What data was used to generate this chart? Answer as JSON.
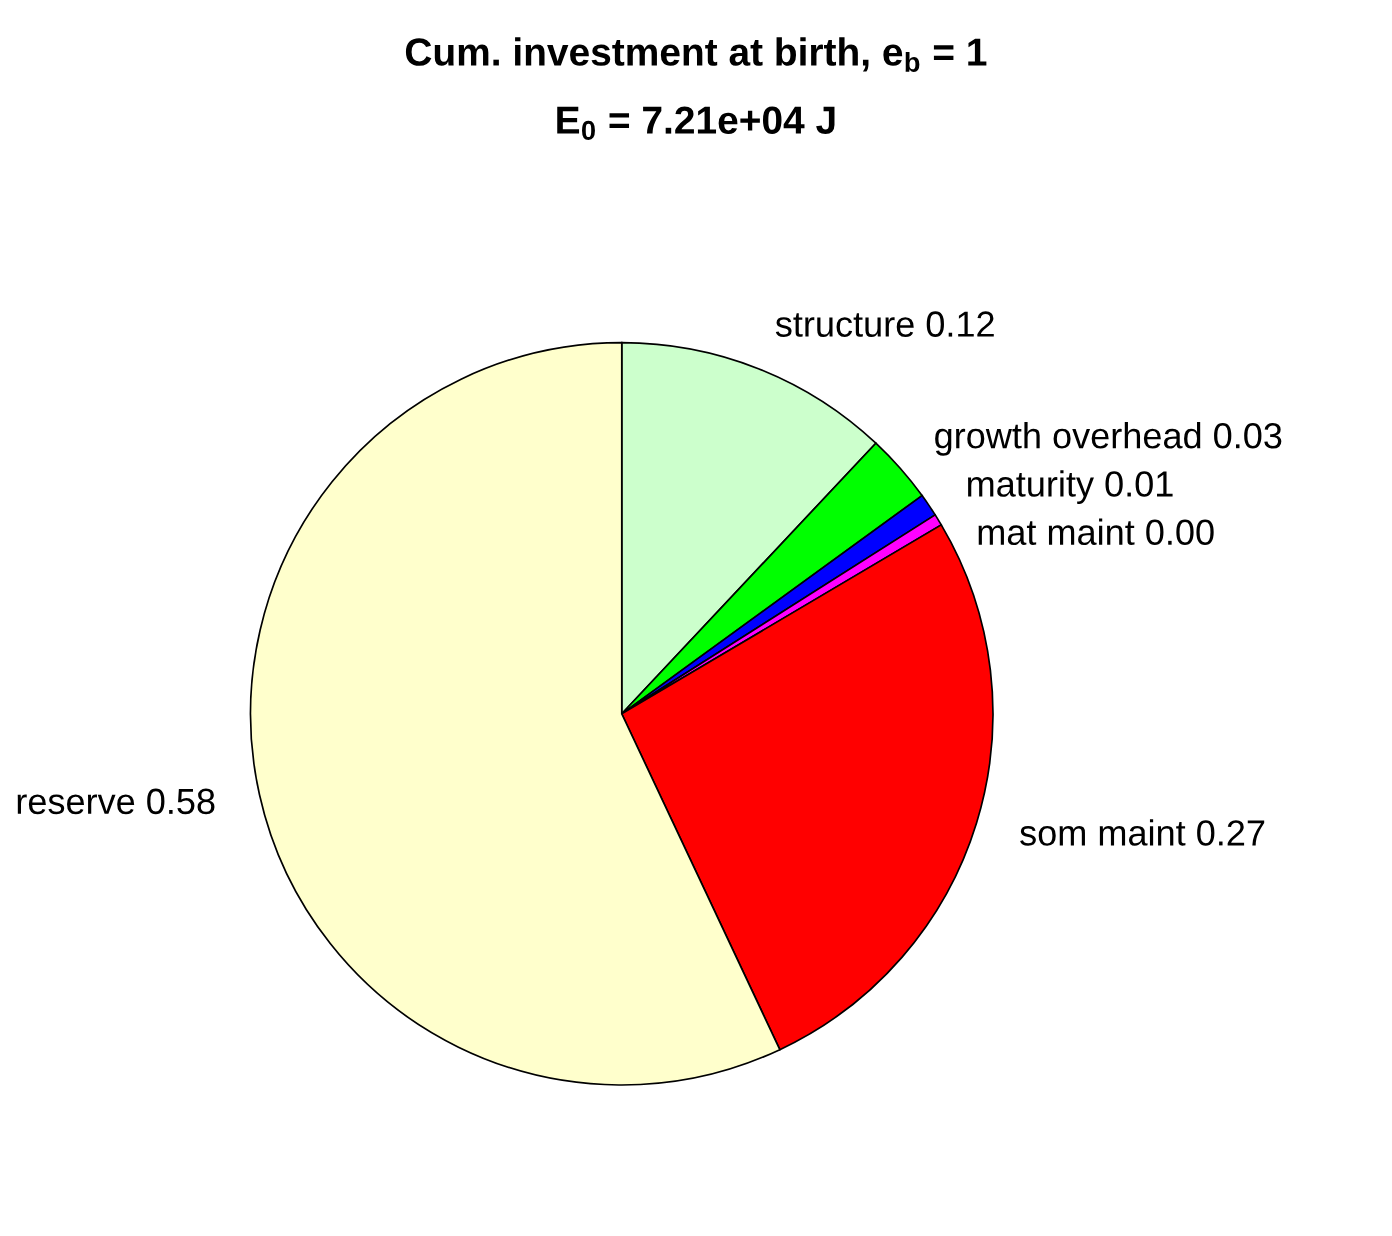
{
  "chart_data": {
    "type": "pie",
    "title": "Cum. investment at birth, e$_{b}$ = 1",
    "subtitle": "E$_{0}$ = 7.21e+04 J",
    "categories": [
      "structure 0.12",
      "growth overhead 0.03",
      "maturity 0.01",
      "mat maint 0.00",
      "som maint 0.27",
      "reserve 0.58"
    ],
    "values": [
      12,
      3,
      1,
      0.5,
      26.5,
      57
    ],
    "colors": [
      "#ccffcc",
      "#00ff00",
      "#0000ff",
      "#ff00ff",
      "#ff0000",
      "#ffffcc"
    ]
  }
}
